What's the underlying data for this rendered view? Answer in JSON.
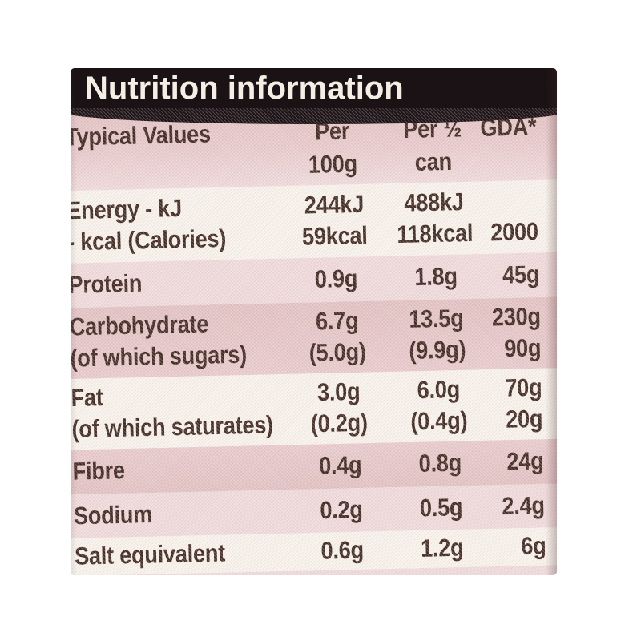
{
  "colors": {
    "page_bg": "#ffffff",
    "bar_bg": "#1a1215",
    "bar_text": "#f4efe5",
    "text": "#422d25",
    "pink": "#e8cccd",
    "pink_light": "#efdbdc",
    "pink_dark": "#e2c3c4",
    "band_white": "#f7f3ec"
  },
  "header": {
    "title": "Nutrition information"
  },
  "columns": {
    "typical_values": "Typical Values",
    "per100_line1": "Per",
    "per100_line2": "100g",
    "perhalf_line1": "Per ½",
    "perhalf_line2": "can",
    "gda": "GDA*"
  },
  "rows": [
    {
      "id": "energy",
      "label1": "Energy - kJ",
      "label2": "- kcal (Calories)",
      "per100_1": "244kJ",
      "per100_2": "59kcal",
      "perhalf_1": "488kJ",
      "perhalf_2": "118kcal",
      "gda1": "",
      "gda2": "2000"
    },
    {
      "id": "protein",
      "label1": "Protein",
      "per100_1": "0.9g",
      "perhalf_1": "1.8g",
      "gda1": "45g"
    },
    {
      "id": "carbohydrate",
      "label1": "Carbohydrate",
      "label2": "(of which sugars)",
      "per100_1": "6.7g",
      "per100_2": "(5.0g)",
      "perhalf_1": "13.5g",
      "perhalf_2": "(9.9g)",
      "gda1": "230g",
      "gda2": "90g"
    },
    {
      "id": "fat",
      "label1": "Fat",
      "label2": "(of which saturates)",
      "per100_1": "3.0g",
      "per100_2": "(0.2g)",
      "perhalf_1": "6.0g",
      "perhalf_2": "(0.4g)",
      "gda1": "70g",
      "gda2": "20g"
    },
    {
      "id": "fibre",
      "label1": "Fibre",
      "per100_1": "0.4g",
      "perhalf_1": "0.8g",
      "gda1": "24g"
    },
    {
      "id": "sodium",
      "label1": "Sodium",
      "per100_1": "0.2g",
      "perhalf_1": "0.5g",
      "gda1": "2.4g"
    },
    {
      "id": "salt",
      "label1": "Salt equivalent",
      "per100_1": "0.6g",
      "perhalf_1": "1.2g",
      "gda1": "6g"
    }
  ]
}
